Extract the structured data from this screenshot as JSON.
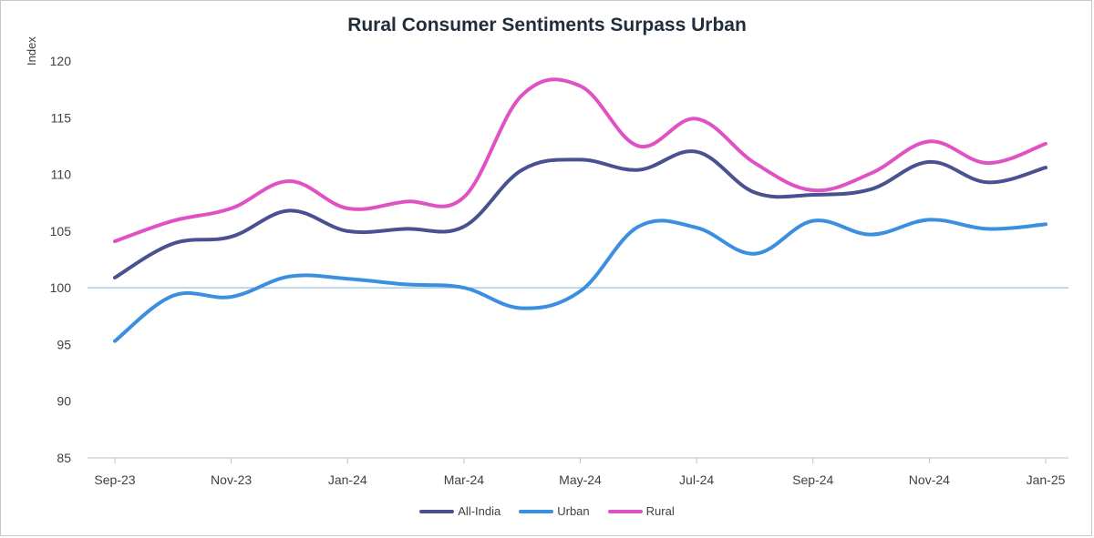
{
  "chart_data": {
    "type": "line",
    "title": "Rural Consumer Sentiments Surpass Urban",
    "xlabel": "",
    "ylabel": "Index",
    "ylim": [
      85,
      120
    ],
    "y_ticks": [
      85,
      90,
      95,
      100,
      105,
      110,
      115,
      120
    ],
    "categories": [
      "Sep-23",
      "Oct-23",
      "Nov-23",
      "Dec-23",
      "Jan-24",
      "Feb-24",
      "Mar-24",
      "Apr-24",
      "May-24",
      "Jun-24",
      "Jul-24",
      "Aug-24",
      "Sep-24",
      "Oct-24",
      "Nov-24",
      "Dec-24",
      "Jan-25"
    ],
    "x_tick_labels": [
      "Sep-23",
      "Nov-23",
      "Jan-24",
      "Mar-24",
      "May-24",
      "Jul-24",
      "Sep-24",
      "Nov-24",
      "Jan-25"
    ],
    "reference_line": 100,
    "grid": false,
    "legend_position": "bottom",
    "series": [
      {
        "name": "All-India",
        "color": "#4a5191",
        "values": [
          100.9,
          103.9,
          104.5,
          106.8,
          105.0,
          105.2,
          105.4,
          110.4,
          111.3,
          110.4,
          112.0,
          108.4,
          108.2,
          108.7,
          111.1,
          109.3,
          110.6
        ]
      },
      {
        "name": "Urban",
        "color": "#3a8fe0",
        "values": [
          95.3,
          99.3,
          99.2,
          101.0,
          100.8,
          100.3,
          100.0,
          98.2,
          99.7,
          105.4,
          105.3,
          103.0,
          105.9,
          104.7,
          106.0,
          105.2,
          105.6
        ]
      },
      {
        "name": "Rural",
        "color": "#e052c4",
        "values": [
          104.1,
          105.9,
          107.0,
          109.4,
          107.0,
          107.6,
          108.0,
          117.0,
          117.8,
          112.5,
          114.9,
          111.0,
          108.6,
          110.1,
          112.9,
          111.0,
          112.7
        ]
      }
    ]
  }
}
